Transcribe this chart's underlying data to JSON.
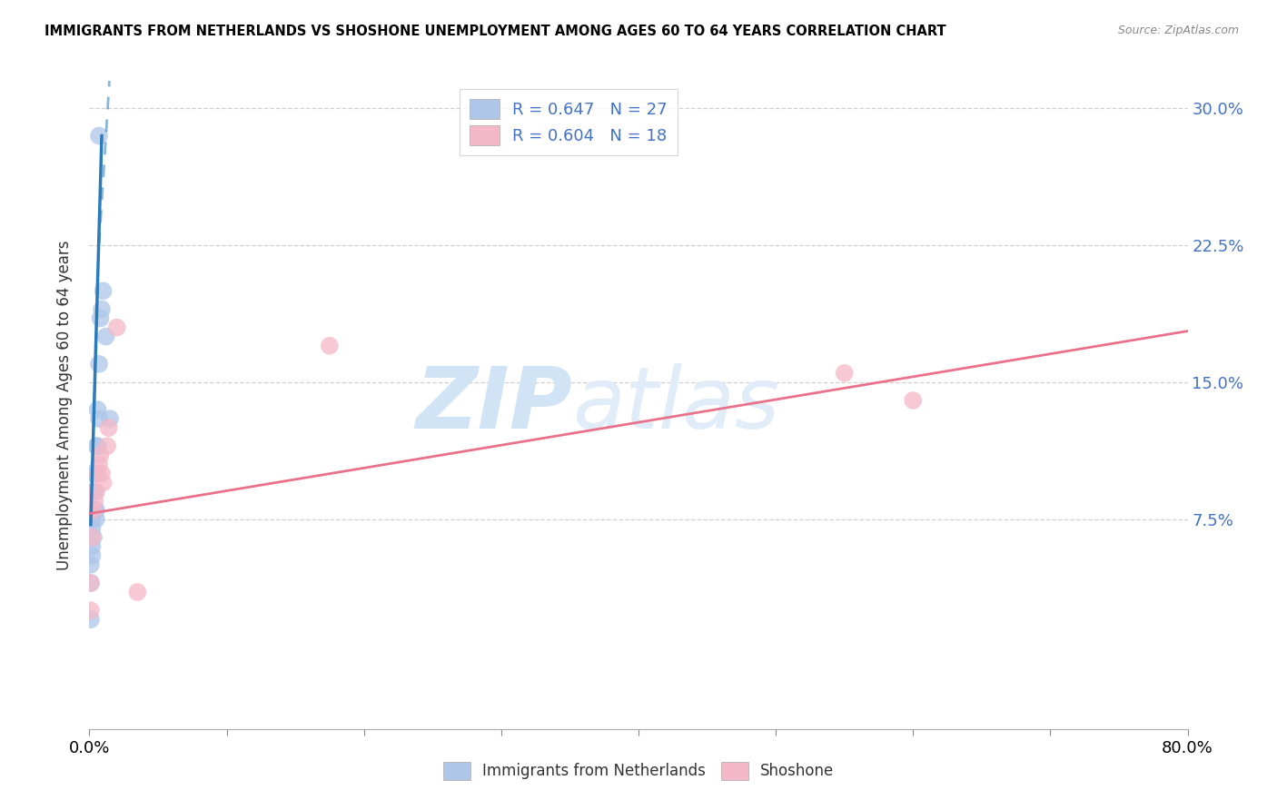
{
  "title": "IMMIGRANTS FROM NETHERLANDS VS SHOSHONE UNEMPLOYMENT AMONG AGES 60 TO 64 YEARS CORRELATION CHART",
  "source": "Source: ZipAtlas.com",
  "ylabel": "Unemployment Among Ages 60 to 64 years",
  "ytick_labels": [
    "7.5%",
    "15.0%",
    "22.5%",
    "30.0%"
  ],
  "ytick_values": [
    0.075,
    0.15,
    0.225,
    0.3
  ],
  "xlim": [
    0.0,
    0.8
  ],
  "ylim": [
    -0.04,
    0.315
  ],
  "legend_blue_label": "R = 0.647   N = 27",
  "legend_pink_label": "R = 0.604   N = 18",
  "legend_bottom_blue": "Immigrants from Netherlands",
  "legend_bottom_pink": "Shoshone",
  "watermark_zip": "ZIP",
  "watermark_atlas": "atlas",
  "blue_scatter_x": [
    0.001,
    0.001,
    0.001,
    0.002,
    0.002,
    0.002,
    0.002,
    0.003,
    0.003,
    0.003,
    0.003,
    0.004,
    0.004,
    0.004,
    0.005,
    0.005,
    0.005,
    0.006,
    0.006,
    0.007,
    0.007,
    0.008,
    0.009,
    0.01,
    0.012,
    0.015,
    0.007
  ],
  "blue_scatter_y": [
    0.02,
    0.04,
    0.05,
    0.055,
    0.06,
    0.07,
    0.075,
    0.065,
    0.08,
    0.09,
    0.1,
    0.08,
    0.09,
    0.1,
    0.075,
    0.08,
    0.115,
    0.115,
    0.135,
    0.13,
    0.16,
    0.185,
    0.19,
    0.2,
    0.175,
    0.13,
    0.285
  ],
  "pink_scatter_x": [
    0.001,
    0.001,
    0.002,
    0.003,
    0.004,
    0.005,
    0.006,
    0.007,
    0.008,
    0.009,
    0.01,
    0.013,
    0.014,
    0.02,
    0.55,
    0.6,
    0.035,
    0.175
  ],
  "pink_scatter_y": [
    0.025,
    0.04,
    0.065,
    0.08,
    0.085,
    0.09,
    0.1,
    0.105,
    0.11,
    0.1,
    0.095,
    0.115,
    0.125,
    0.18,
    0.155,
    0.14,
    0.035,
    0.17
  ],
  "blue_color": "#aec6e8",
  "blue_line_color": "#2b7bba",
  "pink_color": "#f4b8c8",
  "pink_line_color": "#e8728a",
  "background_color": "#ffffff",
  "grid_color": "#d0d0d0",
  "watermark_color": "#d0e4f5",
  "blue_label_color": "#4472c4",
  "xticks": [
    0.0,
    0.1,
    0.2,
    0.3,
    0.4,
    0.5,
    0.6,
    0.7,
    0.8
  ]
}
